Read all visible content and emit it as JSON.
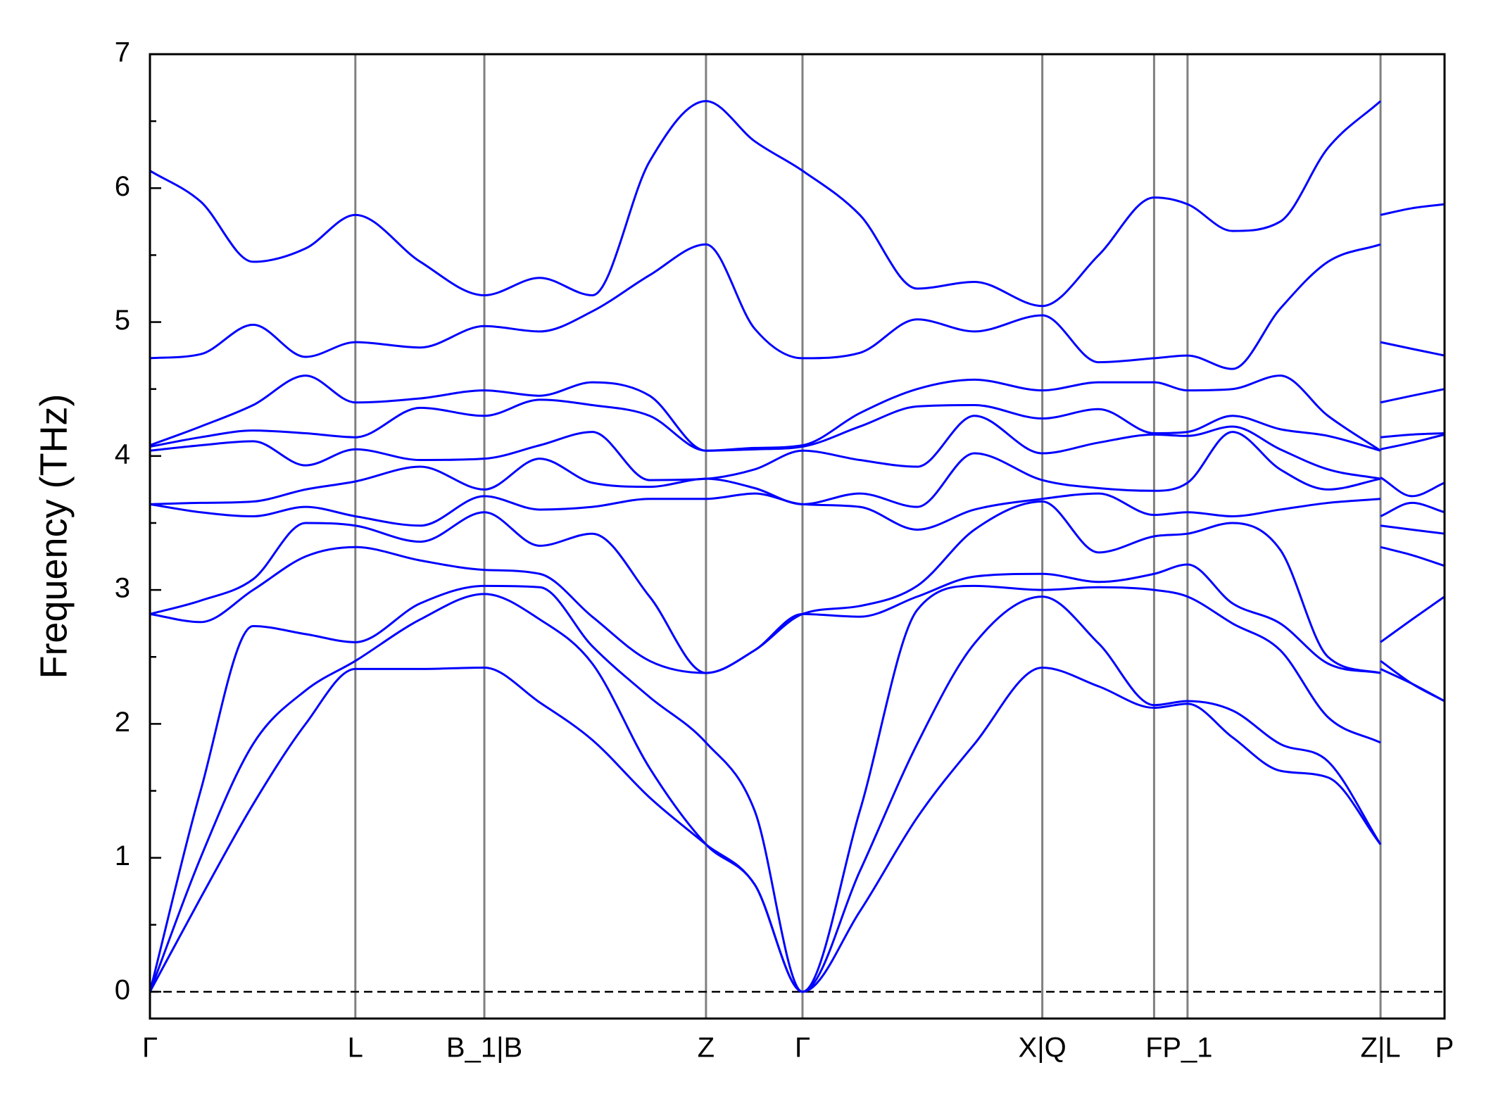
{
  "chart_data": {
    "type": "line",
    "ylabel": "Frequency (THz)",
    "color": "#0000ff",
    "x": [
      0,
      0.053,
      0.108,
      0.163,
      0.215,
      0.283,
      0.35,
      0.408,
      0.463,
      0.523,
      0.582,
      0.633,
      0.683,
      0.743,
      0.803,
      0.863,
      0.934,
      0.993,
      1.051,
      1.086,
      1.133,
      1.183,
      1.233,
      1.288,
      1.288,
      1.288,
      1.321,
      1.355
    ],
    "xlim": [
      0,
      1.355
    ],
    "xticks": [
      {
        "value": 0,
        "label": "Γ"
      },
      {
        "value": 0.215,
        "label": "L"
      },
      {
        "value": 0.35,
        "label": "B_1|B"
      },
      {
        "value": 0.582,
        "label": "Z"
      },
      {
        "value": 0.683,
        "label": "Γ"
      },
      {
        "value": 0.934,
        "label": "X|Q"
      },
      {
        "value": 1.051,
        "label": "F"
      },
      {
        "value": 1.086,
        "label": "P_1"
      },
      {
        "value": 1.288,
        "label": "Z|L"
      },
      {
        "value": 1.355,
        "label": "P"
      }
    ],
    "ylim": [
      -0.2,
      7
    ],
    "yticks": [
      0,
      1,
      2,
      3,
      4,
      5,
      6,
      7
    ],
    "yticks_minor": [
      0.5,
      1.5,
      2.5,
      3.5,
      4.5,
      5.5,
      6.5
    ],
    "symmetry_lines": true,
    "zero_line": true,
    "series": [
      {
        "values": [
          0,
          0.7,
          1.4,
          2.0,
          2.41,
          2.41,
          2.42,
          2.16,
          1.88,
          1.45,
          1.1,
          0.8,
          0,
          0.6,
          1.3,
          1.85,
          2.42,
          2.28,
          2.12,
          2.15,
          1.9,
          1.65,
          1.6,
          1.1,
          null,
          2.41,
          2.3,
          2.17
        ]
      },
      {
        "values": [
          0,
          1.0,
          1.85,
          2.25,
          2.47,
          2.78,
          2.97,
          2.78,
          2.45,
          1.67,
          1.1,
          0.8,
          0,
          0.9,
          1.85,
          2.6,
          2.95,
          2.6,
          2.14,
          2.17,
          2.1,
          1.85,
          1.72,
          1.1,
          null,
          2.47,
          2.3,
          2.17
        ]
      },
      {
        "values": [
          0,
          1.5,
          2.73,
          2.67,
          2.61,
          2.9,
          3.03,
          3.02,
          2.58,
          2.2,
          1.86,
          1.35,
          0,
          1.35,
          2.85,
          3.03,
          3.0,
          3.02,
          3.0,
          2.95,
          2.75,
          2.55,
          2.05,
          1.86,
          null,
          2.61,
          2.78,
          2.95
        ]
      },
      {
        "values": [
          2.82,
          2.76,
          3.0,
          3.25,
          3.32,
          3.22,
          3.15,
          3.12,
          2.8,
          2.47,
          2.38,
          2.55,
          2.82,
          2.8,
          2.95,
          3.1,
          3.12,
          3.06,
          3.12,
          3.19,
          2.9,
          2.75,
          2.45,
          2.38,
          null,
          3.32,
          3.26,
          3.18
        ]
      },
      {
        "values": [
          2.82,
          2.92,
          3.08,
          3.5,
          3.48,
          3.36,
          3.58,
          3.33,
          3.42,
          2.95,
          2.38,
          2.55,
          2.82,
          2.88,
          3.03,
          3.45,
          3.66,
          3.28,
          3.4,
          3.42,
          3.5,
          3.3,
          2.5,
          2.38,
          null,
          3.48,
          3.45,
          3.42
        ]
      },
      {
        "values": [
          3.64,
          3.58,
          3.55,
          3.62,
          3.55,
          3.48,
          3.7,
          3.6,
          3.62,
          3.68,
          3.68,
          3.72,
          3.64,
          3.62,
          3.45,
          3.6,
          3.68,
          3.72,
          3.56,
          3.58,
          3.55,
          3.6,
          3.65,
          3.68,
          null,
          3.55,
          3.65,
          3.58
        ]
      },
      {
        "values": [
          3.64,
          3.65,
          3.66,
          3.75,
          3.81,
          3.92,
          3.75,
          3.98,
          3.8,
          3.77,
          3.83,
          3.76,
          3.64,
          3.72,
          3.62,
          4.02,
          3.82,
          3.76,
          3.74,
          3.8,
          4.18,
          3.9,
          3.75,
          3.83,
          null,
          3.84,
          3.7,
          3.8
        ]
      },
      {
        "values": [
          4.04,
          4.08,
          4.11,
          3.93,
          4.05,
          3.97,
          3.98,
          4.08,
          4.18,
          3.82,
          3.83,
          3.9,
          4.04,
          3.97,
          3.92,
          4.3,
          4.02,
          4.1,
          4.16,
          4.15,
          4.22,
          4.05,
          3.9,
          3.83,
          null,
          4.05,
          4.1,
          4.16
        ]
      },
      {
        "values": [
          4.07,
          4.14,
          4.19,
          4.17,
          4.14,
          4.36,
          4.3,
          4.42,
          4.38,
          4.3,
          4.04,
          4.05,
          4.07,
          4.22,
          4.37,
          4.38,
          4.28,
          4.35,
          4.17,
          4.18,
          4.3,
          4.2,
          4.15,
          4.04,
          null,
          4.14,
          4.16,
          4.17
        ]
      },
      {
        "values": [
          4.08,
          4.22,
          4.38,
          4.6,
          4.4,
          4.43,
          4.49,
          4.45,
          4.55,
          4.45,
          4.04,
          4.06,
          4.08,
          4.32,
          4.5,
          4.57,
          4.49,
          4.55,
          4.55,
          4.49,
          4.5,
          4.6,
          4.3,
          4.04,
          null,
          4.4,
          4.45,
          4.5
        ]
      },
      {
        "values": [
          4.73,
          4.76,
          4.98,
          4.74,
          4.85,
          4.81,
          4.97,
          4.93,
          5.08,
          5.35,
          5.58,
          4.95,
          4.73,
          4.77,
          5.02,
          4.93,
          5.05,
          4.7,
          4.73,
          4.75,
          4.65,
          5.1,
          5.45,
          5.58,
          null,
          4.85,
          4.8,
          4.75
        ]
      },
      {
        "values": [
          6.13,
          5.9,
          5.45,
          5.55,
          5.8,
          5.45,
          5.2,
          5.33,
          5.2,
          6.2,
          6.65,
          6.35,
          6.13,
          5.8,
          5.25,
          5.3,
          5.12,
          5.5,
          5.93,
          5.88,
          5.68,
          5.75,
          6.3,
          6.65,
          null,
          5.8,
          5.85,
          5.88
        ]
      }
    ]
  }
}
